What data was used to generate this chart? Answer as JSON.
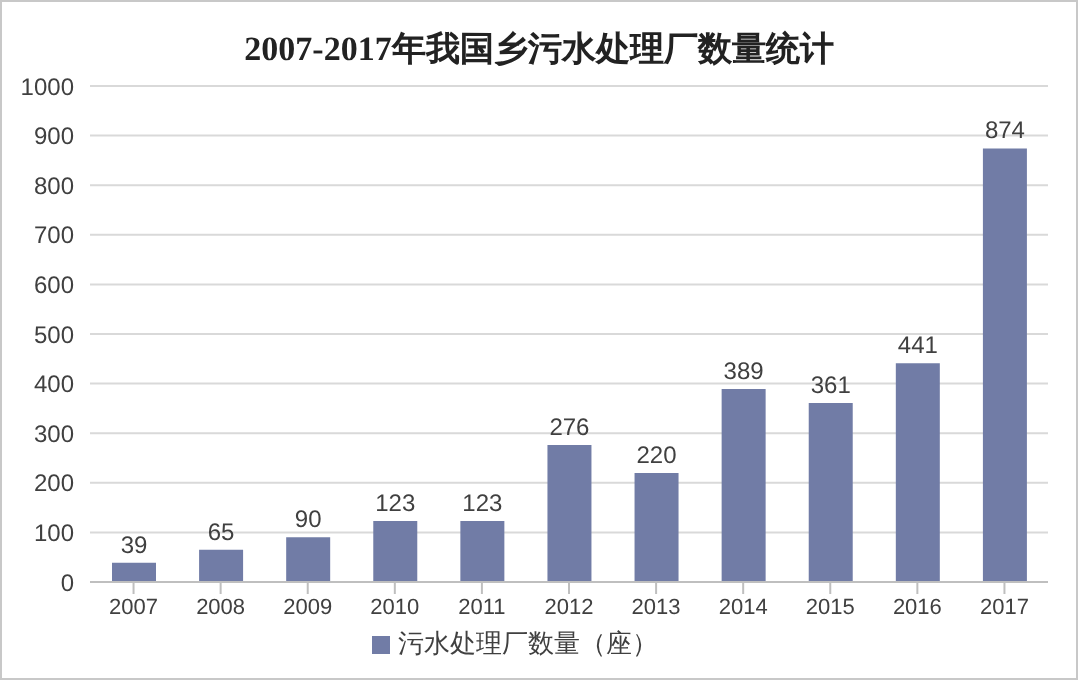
{
  "chart_data": {
    "type": "bar",
    "title": "2007-2017年我国乡污水处理厂数量统计",
    "categories": [
      "2007",
      "2008",
      "2009",
      "2010",
      "2011",
      "2012",
      "2013",
      "2014",
      "2015",
      "2016",
      "2017"
    ],
    "series": [
      {
        "name": "污水处理厂数量（座）",
        "color": "#717ca6",
        "values": [
          39,
          65,
          90,
          123,
          123,
          276,
          220,
          389,
          361,
          441,
          874
        ]
      }
    ],
    "ylim": [
      0,
      1000
    ],
    "yticks": [
      0,
      100,
      200,
      300,
      400,
      500,
      600,
      700,
      800,
      900,
      1000
    ],
    "grid": "y",
    "legend": "bottom",
    "data_labels": true
  }
}
